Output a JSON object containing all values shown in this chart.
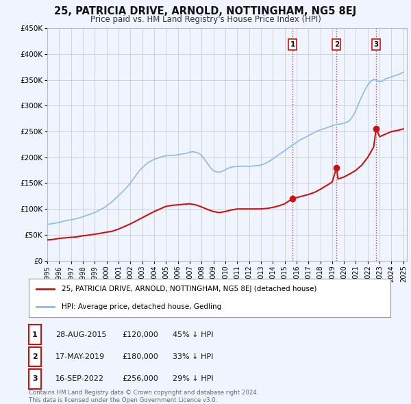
{
  "title": "25, PATRICIA DRIVE, ARNOLD, NOTTINGHAM, NG5 8EJ",
  "subtitle": "Price paid vs. HM Land Registry's House Price Index (HPI)",
  "ylim": [
    0,
    450000
  ],
  "xlim_start": 1995.0,
  "xlim_end": 2025.3,
  "yticks": [
    0,
    50000,
    100000,
    150000,
    200000,
    250000,
    300000,
    350000,
    400000,
    450000
  ],
  "ytick_labels": [
    "£0",
    "£50K",
    "£100K",
    "£150K",
    "£200K",
    "£250K",
    "£300K",
    "£350K",
    "£400K",
    "£450K"
  ],
  "xticks": [
    1995,
    1996,
    1997,
    1998,
    1999,
    2000,
    2001,
    2002,
    2003,
    2004,
    2005,
    2006,
    2007,
    2008,
    2009,
    2010,
    2011,
    2012,
    2013,
    2014,
    2015,
    2016,
    2017,
    2018,
    2019,
    2020,
    2021,
    2022,
    2023,
    2024,
    2025
  ],
  "sale_dates": [
    2015.66,
    2019.37,
    2022.71
  ],
  "sale_prices": [
    120000,
    180000,
    256000
  ],
  "sale_labels": [
    "1",
    "2",
    "3"
  ],
  "vline_color": "#dd3333",
  "vline_style": ":",
  "sale_marker_color": "#cc1111",
  "hpi_line_color": "#88bbee",
  "price_line_color": "#cc1111",
  "background_color": "#f0f4ff",
  "plot_bg_color": "#f0f4ff",
  "grid_color": "#cccccc",
  "legend_label_red": "25, PATRICIA DRIVE, ARNOLD, NOTTINGHAM, NG5 8EJ (detached house)",
  "legend_label_blue": "HPI: Average price, detached house, Gedling",
  "table_entries": [
    {
      "label": "1",
      "date": "28-AUG-2015",
      "price": "£120,000",
      "hpi": "45% ↓ HPI"
    },
    {
      "label": "2",
      "date": "17-MAY-2019",
      "price": "£180,000",
      "hpi": "33% ↓ HPI"
    },
    {
      "label": "3",
      "date": "16-SEP-2022",
      "price": "£256,000",
      "hpi": "29% ↓ HPI"
    }
  ],
  "footer": "Contains HM Land Registry data © Crown copyright and database right 2024.\nThis data is licensed under the Open Government Licence v3.0.",
  "hpi_x": [
    1995.0,
    1995.25,
    1995.5,
    1995.75,
    1996.0,
    1996.25,
    1996.5,
    1996.75,
    1997.0,
    1997.25,
    1997.5,
    1997.75,
    1998.0,
    1998.25,
    1998.5,
    1998.75,
    1999.0,
    1999.25,
    1999.5,
    1999.75,
    2000.0,
    2000.25,
    2000.5,
    2000.75,
    2001.0,
    2001.25,
    2001.5,
    2001.75,
    2002.0,
    2002.25,
    2002.5,
    2002.75,
    2003.0,
    2003.25,
    2003.5,
    2003.75,
    2004.0,
    2004.25,
    2004.5,
    2004.75,
    2005.0,
    2005.25,
    2005.5,
    2005.75,
    2006.0,
    2006.25,
    2006.5,
    2006.75,
    2007.0,
    2007.25,
    2007.5,
    2007.75,
    2008.0,
    2008.25,
    2008.5,
    2008.75,
    2009.0,
    2009.25,
    2009.5,
    2009.75,
    2010.0,
    2010.25,
    2010.5,
    2010.75,
    2011.0,
    2011.25,
    2011.5,
    2011.75,
    2012.0,
    2012.25,
    2012.5,
    2012.75,
    2013.0,
    2013.25,
    2013.5,
    2013.75,
    2014.0,
    2014.25,
    2014.5,
    2014.75,
    2015.0,
    2015.25,
    2015.5,
    2015.75,
    2016.0,
    2016.25,
    2016.5,
    2016.75,
    2017.0,
    2017.25,
    2017.5,
    2017.75,
    2018.0,
    2018.25,
    2018.5,
    2018.75,
    2019.0,
    2019.25,
    2019.5,
    2019.75,
    2020.0,
    2020.25,
    2020.5,
    2020.75,
    2021.0,
    2021.25,
    2021.5,
    2021.75,
    2022.0,
    2022.25,
    2022.5,
    2022.75,
    2023.0,
    2023.25,
    2023.5,
    2023.75,
    2024.0,
    2024.25,
    2024.5,
    2024.75,
    2025.0
  ],
  "hpi_y": [
    70000,
    71000,
    72000,
    73000,
    74000,
    75500,
    77000,
    78000,
    79000,
    80000,
    81500,
    83000,
    85000,
    87000,
    89000,
    91000,
    93000,
    96000,
    99000,
    102000,
    106000,
    110000,
    115000,
    120000,
    126000,
    131000,
    137000,
    143000,
    150000,
    158000,
    166000,
    174000,
    180000,
    185000,
    190000,
    193000,
    196000,
    198000,
    200000,
    202000,
    203000,
    203500,
    204000,
    204000,
    205000,
    206000,
    207000,
    208000,
    210000,
    211000,
    210000,
    208000,
    204000,
    196000,
    188000,
    180000,
    174000,
    172000,
    171000,
    173000,
    176000,
    179000,
    181000,
    182000,
    182000,
    182500,
    183000,
    183000,
    182500,
    183000,
    183500,
    184000,
    185000,
    187000,
    190000,
    193000,
    197000,
    201000,
    205000,
    209000,
    213000,
    217000,
    221000,
    225000,
    229000,
    233000,
    236000,
    239000,
    242000,
    245000,
    248000,
    251000,
    253000,
    255000,
    257000,
    259000,
    261000,
    263000,
    264000,
    265000,
    266000,
    268000,
    272000,
    280000,
    291000,
    305000,
    318000,
    330000,
    340000,
    347000,
    351000,
    350000,
    346000,
    348000,
    352000,
    354000,
    356000,
    358000,
    360000,
    362000,
    365000
  ],
  "price_x": [
    1995.0,
    1995.5,
    1996.0,
    1997.0,
    1997.5,
    1998.0,
    1999.0,
    1999.5,
    2000.5,
    2001.0,
    2001.5,
    2002.0,
    2002.5,
    2003.0,
    2003.5,
    2004.0,
    2004.5,
    2005.0,
    2005.5,
    2006.0,
    2006.5,
    2007.0,
    2007.5,
    2008.0,
    2008.5,
    2009.0,
    2009.5,
    2010.0,
    2010.5,
    2011.0,
    2011.5,
    2012.0,
    2012.5,
    2013.0,
    2013.5,
    2014.0,
    2014.5,
    2015.0,
    2015.66,
    2016.0,
    2016.5,
    2017.0,
    2017.5,
    2018.0,
    2018.5,
    2019.0,
    2019.37,
    2019.5,
    2020.0,
    2020.5,
    2021.0,
    2021.5,
    2022.0,
    2022.5,
    2022.71,
    2023.0,
    2023.5,
    2024.0,
    2024.5,
    2025.0
  ],
  "price_y": [
    40000,
    41000,
    43000,
    45000,
    46000,
    48000,
    51000,
    53000,
    57000,
    61000,
    66000,
    71000,
    77000,
    83000,
    89000,
    95000,
    100000,
    105000,
    107000,
    108000,
    109000,
    110000,
    108000,
    104000,
    99000,
    95000,
    93000,
    95000,
    98000,
    100000,
    100000,
    100000,
    100000,
    100000,
    101000,
    103000,
    106000,
    110000,
    120000,
    122000,
    125000,
    128000,
    132000,
    138000,
    145000,
    152000,
    180000,
    158000,
    162000,
    168000,
    175000,
    185000,
    200000,
    220000,
    256000,
    240000,
    245000,
    250000,
    252000,
    255000
  ]
}
